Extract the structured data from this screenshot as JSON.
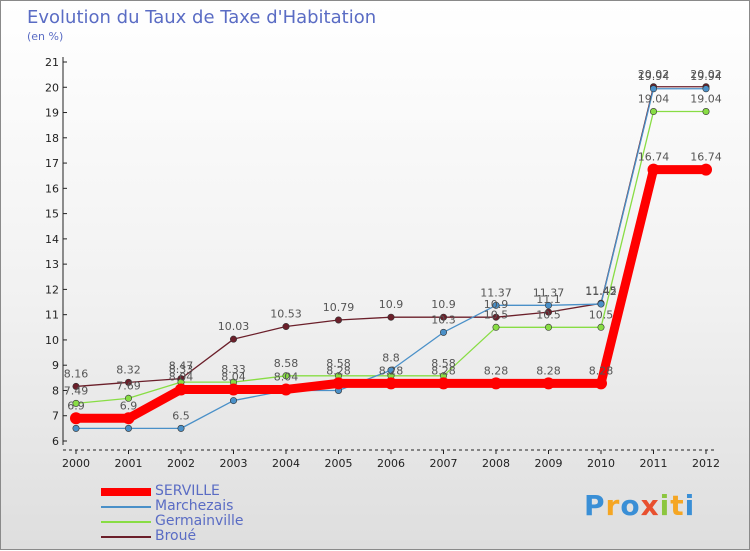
{
  "chart_data": {
    "type": "line",
    "title": "Evolution du Taux de Taxe d'Habitation",
    "ylabel": "(en %)",
    "xlabel": "",
    "categories": [
      "2000",
      "2001",
      "2002",
      "2003",
      "2004",
      "2005",
      "2006",
      "2007",
      "2008",
      "2009",
      "2010",
      "2011",
      "2012"
    ],
    "ylim": [
      6,
      21
    ],
    "yticks": [
      6,
      7,
      8,
      9,
      10,
      11,
      12,
      13,
      14,
      15,
      16,
      17,
      18,
      19,
      20,
      21
    ],
    "grid": false,
    "legend_position": "bottom-left",
    "series": [
      {
        "name": "SERVILLE",
        "color": "#ff0000",
        "values": [
          6.9,
          6.9,
          8.04,
          8.04,
          8.04,
          8.28,
          8.28,
          8.28,
          8.28,
          8.28,
          8.28,
          16.74,
          16.74
        ],
        "labels": [
          "6.9",
          "6.9",
          "8.04",
          "8.04",
          "8.04",
          "8.28",
          "8.28",
          "8.28",
          "8.28",
          "8.28",
          "8.28",
          "16.74",
          "16.74"
        ]
      },
      {
        "name": "Marchezais",
        "color": "#4a90c8",
        "values": [
          6.5,
          6.5,
          6.5,
          7.6,
          8.0,
          8.0,
          8.8,
          10.3,
          11.37,
          11.37,
          11.42,
          19.94,
          19.94
        ],
        "labels": [
          "",
          "",
          "6.5",
          "",
          "",
          "",
          "8.8",
          "10.3",
          "11.37",
          "11.37",
          "11.42",
          "19.94",
          "19.94"
        ]
      },
      {
        "name": "Germainville",
        "color": "#88dd44",
        "values": [
          7.49,
          7.69,
          8.33,
          8.33,
          8.58,
          8.58,
          8.58,
          8.58,
          10.5,
          10.5,
          10.5,
          19.04,
          19.04
        ],
        "labels": [
          "7.49",
          "7.69",
          "8.33",
          "8.33",
          "8.58",
          "8.58",
          "",
          "8.58",
          "10.5",
          "10.5",
          "10.5",
          "19.04",
          "19.04"
        ]
      },
      {
        "name": "Broué",
        "color": "#6b1f2a",
        "values": [
          8.16,
          8.32,
          8.47,
          10.03,
          10.53,
          10.79,
          10.9,
          10.9,
          10.9,
          11.1,
          11.45,
          20.02,
          20.02
        ],
        "labels": [
          "8.16",
          "8.32",
          "8.47",
          "10.03",
          "10.53",
          "10.79",
          "10.9",
          "10.9",
          "10.9",
          "11.1",
          "11.45",
          "20.02",
          "20.02"
        ]
      }
    ]
  },
  "logo": {
    "letters": [
      "P",
      "r",
      "o",
      "x",
      "i",
      "t",
      "i"
    ],
    "colors": [
      "#3a8fd6",
      "#f5a623",
      "#3a8fd6",
      "#e8502f",
      "#8cc63f",
      "#f5a623",
      "#3a8fd6"
    ]
  }
}
